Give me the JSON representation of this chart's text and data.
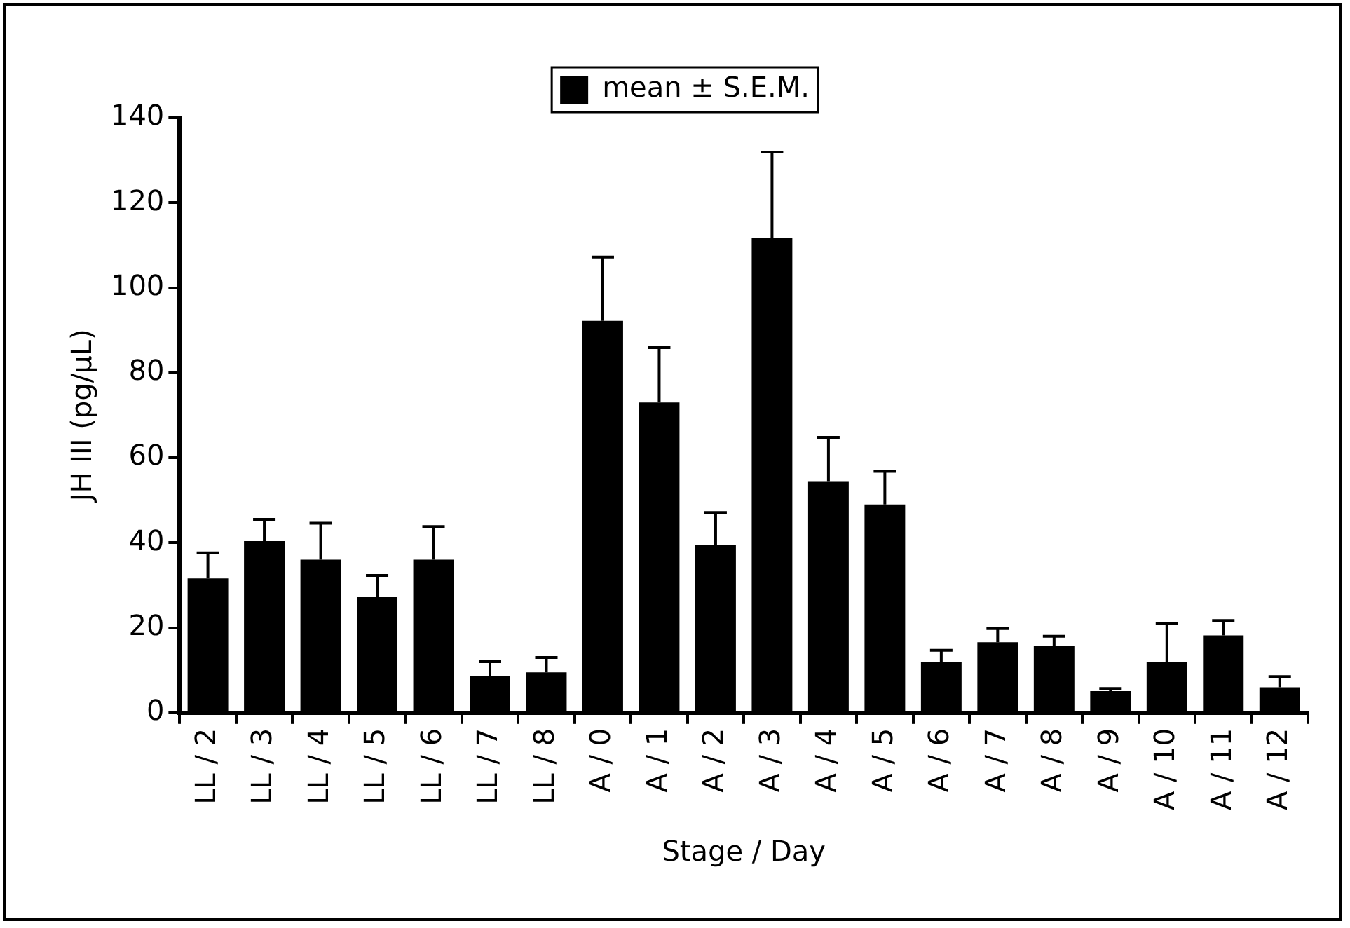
{
  "chart_data": {
    "type": "bar",
    "xlabel": "Stage / Day",
    "ylabel": "JH III (pg/µL)",
    "categories": [
      "LL / 2",
      "LL / 3",
      "LL / 4",
      "LL / 5",
      "LL / 6",
      "LL / 7",
      "LL / 8",
      "A / 0",
      "A / 1",
      "A / 2",
      "A / 3",
      "A / 4",
      "A / 5",
      "A / 6",
      "A / 7",
      "A / 8",
      "A / 9",
      "A / 10",
      "A / 11",
      "A / 12"
    ],
    "series": [
      {
        "name": "mean ± S.E.M.",
        "color": "#000000",
        "values": [
          31.6,
          40.4,
          36,
          27.2,
          36,
          8.7,
          9.5,
          92.2,
          73,
          39.5,
          111.7,
          54.5,
          49,
          12,
          16.6,
          15.7,
          5.1,
          12,
          18.2,
          6
        ],
        "errors": [
          [
            31.6,
            37.6
          ],
          [
            40.4,
            45.5
          ],
          [
            36,
            44.6
          ],
          [
            27.2,
            32.3
          ],
          [
            36,
            43.8
          ],
          [
            8.7,
            12
          ],
          [
            9.5,
            13
          ],
          [
            92.2,
            107.2
          ],
          [
            73,
            85.9
          ],
          [
            39.5,
            47.1
          ],
          [
            111.7,
            131.9
          ],
          [
            54.5,
            64.8
          ],
          [
            49,
            56.8
          ],
          [
            12,
            14.7
          ],
          [
            16.6,
            19.8
          ],
          [
            15.7,
            18
          ],
          [
            5.1,
            5.7
          ],
          [
            12,
            20.9
          ],
          [
            18.2,
            21.7
          ],
          [
            6,
            8.5
          ]
        ]
      }
    ],
    "ylim": [
      0,
      140
    ],
    "yticks": [
      0,
      20,
      40,
      60,
      80,
      100,
      120,
      140
    ],
    "grid": false,
    "legend": "top"
  }
}
